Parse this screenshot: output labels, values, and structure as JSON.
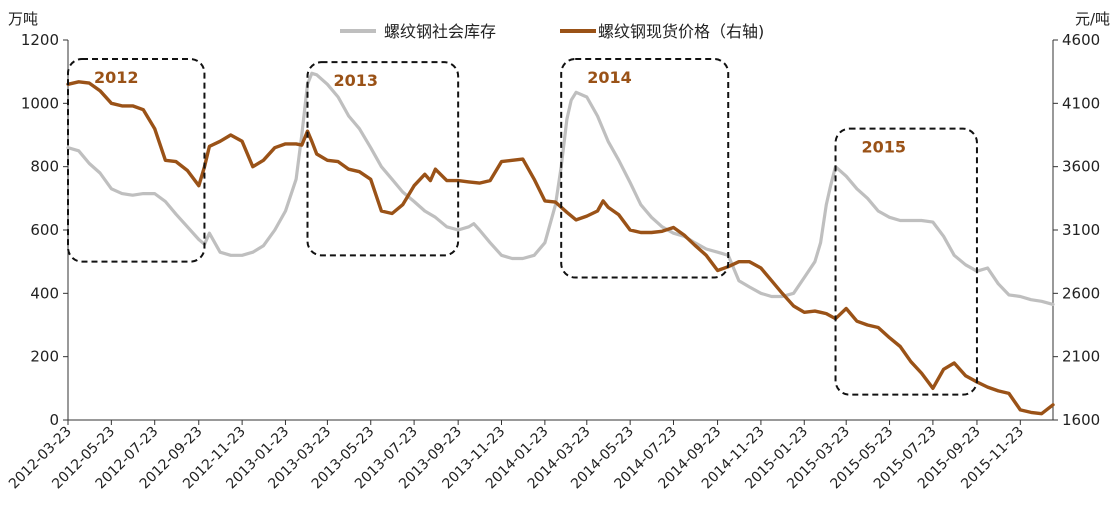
{
  "chart_data": {
    "type": "line",
    "left_unit": "万吨",
    "right_unit": "元/吨",
    "left_axis": {
      "min": 0,
      "max": 1200,
      "step": 200,
      "ticks": [
        "0",
        "200",
        "400",
        "600",
        "800",
        "1000",
        "1200"
      ]
    },
    "right_axis": {
      "min": 1600,
      "max": 4600,
      "step": 500,
      "ticks": [
        "1600",
        "2100",
        "2600",
        "3100",
        "3600",
        "4100",
        "4600"
      ]
    },
    "x_ticks": [
      "2012-03-23",
      "2012-05-23",
      "2012-07-23",
      "2012-09-23",
      "2012-11-23",
      "2013-01-23",
      "2013-03-23",
      "2013-05-23",
      "2013-07-23",
      "2013-09-23",
      "2013-11-23",
      "2014-01-23",
      "2014-03-23",
      "2014-05-23",
      "2014-07-23",
      "2014-09-23",
      "2014-11-23",
      "2015-01-23",
      "2015-03-23",
      "2015-05-23",
      "2015-07-23",
      "2015-09-23",
      "2015-11-23"
    ],
    "x_range": [
      "2012-03-23",
      "2016-01-08"
    ],
    "legend_position": "top",
    "series": [
      {
        "name": "螺纹钢社会库存",
        "axis": "left",
        "color": "#bfbfbf",
        "points": [
          [
            "2012-03-23",
            860
          ],
          [
            "2012-04-07",
            850
          ],
          [
            "2012-04-22",
            810
          ],
          [
            "2012-05-07",
            780
          ],
          [
            "2012-05-23",
            730
          ],
          [
            "2012-06-07",
            715
          ],
          [
            "2012-06-22",
            710
          ],
          [
            "2012-07-07",
            715
          ],
          [
            "2012-07-23",
            715
          ],
          [
            "2012-08-07",
            690
          ],
          [
            "2012-08-22",
            650
          ],
          [
            "2012-09-07",
            610
          ],
          [
            "2012-09-23",
            570
          ],
          [
            "2012-10-01",
            555
          ],
          [
            "2012-10-08",
            590
          ],
          [
            "2012-10-23",
            530
          ],
          [
            "2012-11-07",
            520
          ],
          [
            "2012-11-23",
            520
          ],
          [
            "2012-12-08",
            530
          ],
          [
            "2012-12-23",
            550
          ],
          [
            "2013-01-08",
            600
          ],
          [
            "2013-01-23",
            660
          ],
          [
            "2013-02-07",
            760
          ],
          [
            "2013-02-15",
            900
          ],
          [
            "2013-02-23",
            1060
          ],
          [
            "2013-03-01",
            1095
          ],
          [
            "2013-03-08",
            1090
          ],
          [
            "2013-03-23",
            1060
          ],
          [
            "2013-04-07",
            1020
          ],
          [
            "2013-04-22",
            960
          ],
          [
            "2013-05-07",
            920
          ],
          [
            "2013-05-23",
            860
          ],
          [
            "2013-06-07",
            800
          ],
          [
            "2013-06-22",
            760
          ],
          [
            "2013-07-07",
            720
          ],
          [
            "2013-07-23",
            690
          ],
          [
            "2013-08-07",
            660
          ],
          [
            "2013-08-22",
            640
          ],
          [
            "2013-09-07",
            610
          ],
          [
            "2013-09-23",
            600
          ],
          [
            "2013-10-08",
            610
          ],
          [
            "2013-10-15",
            620
          ],
          [
            "2013-10-23",
            600
          ],
          [
            "2013-11-07",
            560
          ],
          [
            "2013-11-23",
            520
          ],
          [
            "2013-12-08",
            510
          ],
          [
            "2013-12-23",
            510
          ],
          [
            "2014-01-08",
            520
          ],
          [
            "2014-01-23",
            560
          ],
          [
            "2014-02-07",
            680
          ],
          [
            "2014-02-15",
            800
          ],
          [
            "2014-02-23",
            950
          ],
          [
            "2014-03-01",
            1010
          ],
          [
            "2014-03-08",
            1035
          ],
          [
            "2014-03-23",
            1020
          ],
          [
            "2014-04-07",
            960
          ],
          [
            "2014-04-22",
            880
          ],
          [
            "2014-05-07",
            820
          ],
          [
            "2014-05-23",
            750
          ],
          [
            "2014-06-07",
            680
          ],
          [
            "2014-06-22",
            640
          ],
          [
            "2014-07-07",
            610
          ],
          [
            "2014-07-23",
            590
          ],
          [
            "2014-08-07",
            580
          ],
          [
            "2014-08-22",
            560
          ],
          [
            "2014-09-07",
            540
          ],
          [
            "2014-09-23",
            530
          ],
          [
            "2014-10-08",
            520
          ],
          [
            "2014-10-23",
            440
          ],
          [
            "2014-11-07",
            420
          ],
          [
            "2014-11-23",
            400
          ],
          [
            "2014-12-08",
            390
          ],
          [
            "2014-12-23",
            390
          ],
          [
            "2015-01-08",
            400
          ],
          [
            "2015-01-23",
            450
          ],
          [
            "2015-02-07",
            500
          ],
          [
            "2015-02-15",
            560
          ],
          [
            "2015-02-23",
            680
          ],
          [
            "2015-03-01",
            740
          ],
          [
            "2015-03-08",
            800
          ],
          [
            "2015-03-23",
            770
          ],
          [
            "2015-04-07",
            730
          ],
          [
            "2015-04-22",
            700
          ],
          [
            "2015-05-07",
            660
          ],
          [
            "2015-05-23",
            640
          ],
          [
            "2015-06-07",
            630
          ],
          [
            "2015-06-22",
            630
          ],
          [
            "2015-07-07",
            630
          ],
          [
            "2015-07-23",
            625
          ],
          [
            "2015-08-07",
            580
          ],
          [
            "2015-08-22",
            520
          ],
          [
            "2015-09-07",
            490
          ],
          [
            "2015-09-23",
            470
          ],
          [
            "2015-10-08",
            480
          ],
          [
            "2015-10-23",
            430
          ],
          [
            "2015-11-07",
            395
          ],
          [
            "2015-11-23",
            390
          ],
          [
            "2015-12-08",
            380
          ],
          [
            "2015-12-23",
            375
          ],
          [
            "2016-01-08",
            365
          ]
        ]
      },
      {
        "name": "螺纹钢现货价格（右轴)",
        "axis": "right",
        "color": "#9a5217",
        "points": [
          [
            "2012-03-23",
            4250
          ],
          [
            "2012-04-07",
            4270
          ],
          [
            "2012-04-22",
            4260
          ],
          [
            "2012-05-07",
            4200
          ],
          [
            "2012-05-23",
            4100
          ],
          [
            "2012-06-07",
            4080
          ],
          [
            "2012-06-22",
            4080
          ],
          [
            "2012-07-07",
            4050
          ],
          [
            "2012-07-23",
            3900
          ],
          [
            "2012-08-07",
            3650
          ],
          [
            "2012-08-22",
            3640
          ],
          [
            "2012-09-07",
            3570
          ],
          [
            "2012-09-23",
            3450
          ],
          [
            "2012-10-01",
            3600
          ],
          [
            "2012-10-08",
            3760
          ],
          [
            "2012-10-23",
            3800
          ],
          [
            "2012-11-07",
            3850
          ],
          [
            "2012-11-23",
            3800
          ],
          [
            "2012-12-08",
            3600
          ],
          [
            "2012-12-23",
            3650
          ],
          [
            "2013-01-08",
            3750
          ],
          [
            "2013-01-23",
            3780
          ],
          [
            "2013-02-07",
            3780
          ],
          [
            "2013-02-15",
            3770
          ],
          [
            "2013-02-23",
            3880
          ],
          [
            "2013-03-01",
            3800
          ],
          [
            "2013-03-08",
            3700
          ],
          [
            "2013-03-23",
            3650
          ],
          [
            "2013-04-07",
            3640
          ],
          [
            "2013-04-22",
            3580
          ],
          [
            "2013-05-07",
            3560
          ],
          [
            "2013-05-23",
            3500
          ],
          [
            "2013-06-07",
            3250
          ],
          [
            "2013-06-22",
            3230
          ],
          [
            "2013-07-07",
            3300
          ],
          [
            "2013-07-23",
            3450
          ],
          [
            "2013-08-07",
            3540
          ],
          [
            "2013-08-15",
            3490
          ],
          [
            "2013-08-22",
            3580
          ],
          [
            "2013-09-07",
            3490
          ],
          [
            "2013-09-23",
            3490
          ],
          [
            "2013-10-08",
            3480
          ],
          [
            "2013-10-23",
            3470
          ],
          [
            "2013-11-07",
            3490
          ],
          [
            "2013-11-23",
            3640
          ],
          [
            "2013-12-08",
            3650
          ],
          [
            "2013-12-23",
            3660
          ],
          [
            "2014-01-08",
            3500
          ],
          [
            "2014-01-23",
            3330
          ],
          [
            "2014-02-07",
            3320
          ],
          [
            "2014-02-23",
            3240
          ],
          [
            "2014-03-08",
            3180
          ],
          [
            "2014-03-23",
            3210
          ],
          [
            "2014-04-07",
            3250
          ],
          [
            "2014-04-15",
            3330
          ],
          [
            "2014-04-22",
            3280
          ],
          [
            "2014-05-07",
            3220
          ],
          [
            "2014-05-23",
            3100
          ],
          [
            "2014-06-07",
            3080
          ],
          [
            "2014-06-22",
            3080
          ],
          [
            "2014-07-07",
            3090
          ],
          [
            "2014-07-23",
            3120
          ],
          [
            "2014-08-07",
            3060
          ],
          [
            "2014-08-22",
            2980
          ],
          [
            "2014-09-07",
            2900
          ],
          [
            "2014-09-23",
            2780
          ],
          [
            "2014-10-08",
            2810
          ],
          [
            "2014-10-23",
            2850
          ],
          [
            "2014-11-07",
            2850
          ],
          [
            "2014-11-23",
            2800
          ],
          [
            "2014-12-08",
            2700
          ],
          [
            "2014-12-23",
            2600
          ],
          [
            "2015-01-08",
            2500
          ],
          [
            "2015-01-23",
            2450
          ],
          [
            "2015-02-07",
            2460
          ],
          [
            "2015-02-15",
            2450
          ],
          [
            "2015-02-23",
            2440
          ],
          [
            "2015-03-08",
            2400
          ],
          [
            "2015-03-23",
            2480
          ],
          [
            "2015-04-07",
            2380
          ],
          [
            "2015-04-22",
            2350
          ],
          [
            "2015-05-07",
            2330
          ],
          [
            "2015-05-23",
            2250
          ],
          [
            "2015-06-07",
            2180
          ],
          [
            "2015-06-22",
            2060
          ],
          [
            "2015-07-07",
            1970
          ],
          [
            "2015-07-23",
            1850
          ],
          [
            "2015-08-07",
            2000
          ],
          [
            "2015-08-22",
            2050
          ],
          [
            "2015-09-07",
            1950
          ],
          [
            "2015-09-23",
            1900
          ],
          [
            "2015-10-08",
            1860
          ],
          [
            "2015-10-23",
            1830
          ],
          [
            "2015-11-07",
            1810
          ],
          [
            "2015-11-23",
            1680
          ],
          [
            "2015-12-08",
            1660
          ],
          [
            "2015-12-23",
            1650
          ],
          [
            "2016-01-08",
            1720
          ]
        ]
      }
    ],
    "annotations": [
      {
        "label": "2012",
        "from": "2012-03-23",
        "to": "2012-10-01",
        "y_top": 1140,
        "y_bottom": 500
      },
      {
        "label": "2013",
        "from": "2013-02-23",
        "to": "2013-09-23",
        "y_top": 1130,
        "y_bottom": 520
      },
      {
        "label": "2014",
        "from": "2014-02-15",
        "to": "2014-10-08",
        "y_top": 1140,
        "y_bottom": 450
      },
      {
        "label": "2015",
        "from": "2015-03-08",
        "to": "2015-09-23",
        "y_top": 920,
        "y_bottom": 80
      }
    ]
  }
}
